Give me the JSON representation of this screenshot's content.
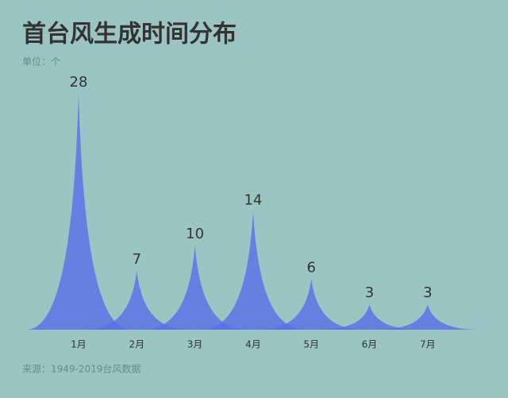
{
  "chart_data": {
    "type": "spike",
    "title": "首台风生成时间分布",
    "subtitle": "单位：个",
    "source": "来源：1949-2019台风数据",
    "categories": [
      "1月",
      "2月",
      "3月",
      "4月",
      "5月",
      "6月",
      "7月"
    ],
    "values": [
      28,
      7,
      10,
      14,
      6,
      3,
      3
    ],
    "color": "#5a6ee8"
  }
}
